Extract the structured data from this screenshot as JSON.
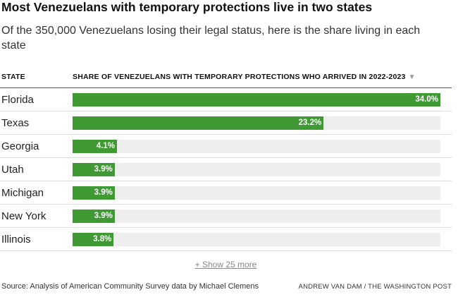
{
  "title": "Most Venezuelans with temporary protections live in two states",
  "subtitle": "Of the 350,000 Venezuelans losing their legal status, here is the share living in each state",
  "columns": {
    "state": "STATE",
    "share": "SHARE OF VENEZUELANS WITH TEMPORARY PROTECTIONS WHO ARRIVED IN 2022-2023",
    "sort_indicator": "▼"
  },
  "show_more": "+ Show 25 more",
  "source": "Source: Analysis of American Community Survey data by Michael Clemens",
  "credit": "ANDREW VAN DAM / THE WASHINGTON POST",
  "colors": {
    "bar": "#3f9a34",
    "track": "#eeeeee"
  },
  "chart_data": {
    "type": "bar",
    "categories": [
      "Florida",
      "Texas",
      "Georgia",
      "Utah",
      "Michigan",
      "New York",
      "Illinois"
    ],
    "values": [
      34.0,
      23.2,
      4.1,
      3.9,
      3.9,
      3.9,
      3.8
    ],
    "value_labels": [
      "34.0%",
      "23.2%",
      "4.1%",
      "3.9%",
      "3.9%",
      "3.9%",
      "3.8%"
    ],
    "xlim": [
      0,
      34.0
    ],
    "orientation": "horizontal"
  }
}
